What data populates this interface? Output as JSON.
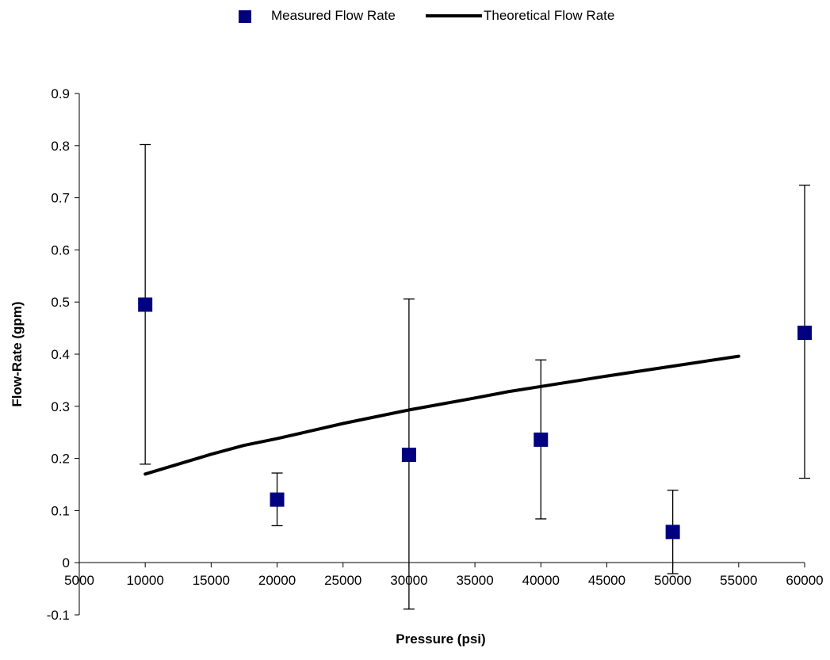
{
  "chart_data": {
    "type": "scatter",
    "title": "",
    "xlabel": "Pressure (psi)",
    "ylabel": "Flow-Rate (gpm)",
    "xlim": [
      5000,
      60000
    ],
    "ylim": [
      -0.1,
      0.9
    ],
    "x_ticks": [
      5000,
      10000,
      15000,
      20000,
      25000,
      30000,
      35000,
      40000,
      45000,
      50000,
      55000,
      60000
    ],
    "x_tick_labels": [
      "5000",
      "10000",
      "15000",
      "20000",
      "25000",
      "30000",
      "35000",
      "40000",
      "45000",
      "50000",
      "55000",
      "60000"
    ],
    "y_ticks": [
      -0.1,
      0,
      0.1,
      0.2,
      0.3,
      0.4,
      0.5,
      0.6,
      0.7,
      0.8,
      0.9
    ],
    "y_tick_labels": [
      "-0.1",
      "0",
      "0.1",
      "0.2",
      "0.3",
      "0.4",
      "0.5",
      "0.6",
      "0.7",
      "0.8",
      "0.9"
    ],
    "grid": false,
    "legend": {
      "position": "top-center",
      "entries": [
        "Measured Flow  Rate",
        "Theoretical Flow  Rate"
      ]
    },
    "series": [
      {
        "name": "Measured Flow  Rate",
        "type": "scatter",
        "marker": "square",
        "color": "#000080",
        "x": [
          10000,
          20000,
          30000,
          40000,
          50000,
          60000
        ],
        "y": [
          0.495,
          0.121,
          0.207,
          0.236,
          0.059,
          0.441
        ],
        "error_low": [
          0.189,
          0.071,
          -0.089,
          0.084,
          -0.021,
          0.162
        ],
        "error_high": [
          0.802,
          0.172,
          0.506,
          0.389,
          0.139,
          0.724
        ]
      },
      {
        "name": "Theoretical Flow  Rate",
        "type": "line",
        "color": "#000000",
        "x": [
          10000,
          15000,
          17500,
          20000,
          25000,
          30000,
          35000,
          37500,
          40000,
          45000,
          50000,
          55000
        ],
        "y": [
          0.17,
          0.208,
          0.225,
          0.238,
          0.267,
          0.293,
          0.316,
          0.328,
          0.338,
          0.358,
          0.377,
          0.396
        ]
      }
    ]
  }
}
